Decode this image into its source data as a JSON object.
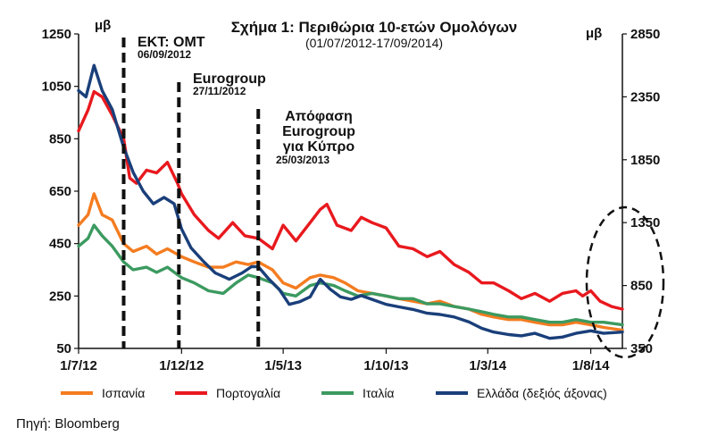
{
  "chart_data": {
    "type": "line",
    "title": "Σχήμα 1: Περιθώρια 10-ετών Ομολόγων",
    "subtitle": "(01/07/2012-17/09/2014)",
    "left_axis_unit": "μβ",
    "right_axis_unit": "μβ",
    "left_ylim": [
      50,
      1250
    ],
    "left_ticks": [
      "1250",
      "1050",
      "850",
      "650",
      "450",
      "250",
      "50"
    ],
    "right_ylim": [
      350,
      2850
    ],
    "right_ticks": [
      "2850",
      "2350",
      "1850",
      "1350",
      "850",
      "350"
    ],
    "x_ticks": [
      "1/7/12",
      "1/12/12",
      "1/5/13",
      "1/10/13",
      "1/3/14",
      "1/8/14"
    ],
    "x_tick_dates": [
      "2012-07-01",
      "2012-12-01",
      "2013-05-01",
      "2013-10-01",
      "2014-03-01",
      "2014-08-01"
    ],
    "x_range": [
      "2012-07-01",
      "2014-09-17"
    ],
    "grid": false,
    "legend_position": "bottom",
    "series": [
      {
        "name": "Ισπανία",
        "color": "#f47c20",
        "axis": "left",
        "points": [
          [
            "2012-07-01",
            520
          ],
          [
            "2012-07-15",
            560
          ],
          [
            "2012-07-24",
            640
          ],
          [
            "2012-08-05",
            560
          ],
          [
            "2012-08-20",
            540
          ],
          [
            "2012-09-06",
            450
          ],
          [
            "2012-09-20",
            420
          ],
          [
            "2012-10-10",
            440
          ],
          [
            "2012-10-25",
            410
          ],
          [
            "2012-11-10",
            430
          ],
          [
            "2012-12-01",
            400
          ],
          [
            "2012-12-20",
            380
          ],
          [
            "2013-01-10",
            360
          ],
          [
            "2013-02-01",
            360
          ],
          [
            "2013-02-20",
            380
          ],
          [
            "2013-03-10",
            370
          ],
          [
            "2013-03-25",
            380
          ],
          [
            "2013-04-15",
            350
          ],
          [
            "2013-05-01",
            300
          ],
          [
            "2013-05-20",
            280
          ],
          [
            "2013-06-10",
            320
          ],
          [
            "2013-06-25",
            330
          ],
          [
            "2013-07-15",
            320
          ],
          [
            "2013-08-01",
            300
          ],
          [
            "2013-08-20",
            270
          ],
          [
            "2013-09-10",
            260
          ],
          [
            "2013-10-01",
            250
          ],
          [
            "2013-10-20",
            240
          ],
          [
            "2013-11-10",
            230
          ],
          [
            "2013-12-01",
            220
          ],
          [
            "2013-12-20",
            230
          ],
          [
            "2014-01-10",
            210
          ],
          [
            "2014-02-01",
            200
          ],
          [
            "2014-02-20",
            180
          ],
          [
            "2014-03-10",
            170
          ],
          [
            "2014-04-01",
            160
          ],
          [
            "2014-04-20",
            160
          ],
          [
            "2014-05-10",
            150
          ],
          [
            "2014-06-01",
            140
          ],
          [
            "2014-06-20",
            140
          ],
          [
            "2014-07-10",
            150
          ],
          [
            "2014-08-01",
            140
          ],
          [
            "2014-08-20",
            130
          ],
          [
            "2014-09-17",
            120
          ]
        ]
      },
      {
        "name": "Πορτογαλία",
        "color": "#e8191e",
        "axis": "left",
        "points": [
          [
            "2012-07-01",
            880
          ],
          [
            "2012-07-15",
            960
          ],
          [
            "2012-07-24",
            1030
          ],
          [
            "2012-08-05",
            1010
          ],
          [
            "2012-08-20",
            940
          ],
          [
            "2012-09-06",
            850
          ],
          [
            "2012-09-15",
            700
          ],
          [
            "2012-09-25",
            680
          ],
          [
            "2012-10-10",
            730
          ],
          [
            "2012-10-25",
            720
          ],
          [
            "2012-11-10",
            760
          ],
          [
            "2012-11-25",
            680
          ],
          [
            "2012-12-01",
            640
          ],
          [
            "2012-12-20",
            560
          ],
          [
            "2013-01-10",
            500
          ],
          [
            "2013-01-25",
            470
          ],
          [
            "2013-02-15",
            530
          ],
          [
            "2013-03-05",
            480
          ],
          [
            "2013-03-25",
            470
          ],
          [
            "2013-04-15",
            430
          ],
          [
            "2013-05-01",
            520
          ],
          [
            "2013-05-20",
            460
          ],
          [
            "2013-06-10",
            530
          ],
          [
            "2013-06-25",
            580
          ],
          [
            "2013-07-05",
            600
          ],
          [
            "2013-07-20",
            520
          ],
          [
            "2013-08-10",
            500
          ],
          [
            "2013-08-25",
            550
          ],
          [
            "2013-09-10",
            530
          ],
          [
            "2013-10-01",
            510
          ],
          [
            "2013-10-20",
            440
          ],
          [
            "2013-11-10",
            430
          ],
          [
            "2013-12-01",
            400
          ],
          [
            "2013-12-20",
            420
          ],
          [
            "2014-01-10",
            370
          ],
          [
            "2014-02-01",
            340
          ],
          [
            "2014-02-20",
            300
          ],
          [
            "2014-03-10",
            300
          ],
          [
            "2014-04-01",
            270
          ],
          [
            "2014-04-20",
            240
          ],
          [
            "2014-05-10",
            260
          ],
          [
            "2014-06-01",
            230
          ],
          [
            "2014-06-20",
            260
          ],
          [
            "2014-07-10",
            270
          ],
          [
            "2014-07-20",
            250
          ],
          [
            "2014-08-01",
            270
          ],
          [
            "2014-08-15",
            230
          ],
          [
            "2014-09-01",
            210
          ],
          [
            "2014-09-17",
            200
          ]
        ]
      },
      {
        "name": "Ιταλία",
        "color": "#3c9a60",
        "axis": "left",
        "points": [
          [
            "2012-07-01",
            440
          ],
          [
            "2012-07-15",
            470
          ],
          [
            "2012-07-24",
            520
          ],
          [
            "2012-08-05",
            480
          ],
          [
            "2012-08-20",
            440
          ],
          [
            "2012-09-06",
            380
          ],
          [
            "2012-09-20",
            350
          ],
          [
            "2012-10-10",
            360
          ],
          [
            "2012-10-25",
            340
          ],
          [
            "2012-11-10",
            360
          ],
          [
            "2012-12-01",
            320
          ],
          [
            "2012-12-20",
            300
          ],
          [
            "2013-01-10",
            270
          ],
          [
            "2013-02-01",
            260
          ],
          [
            "2013-02-20",
            300
          ],
          [
            "2013-03-10",
            330
          ],
          [
            "2013-03-25",
            320
          ],
          [
            "2013-04-15",
            300
          ],
          [
            "2013-05-01",
            260
          ],
          [
            "2013-05-20",
            250
          ],
          [
            "2013-06-10",
            290
          ],
          [
            "2013-06-25",
            300
          ],
          [
            "2013-07-15",
            290
          ],
          [
            "2013-08-01",
            270
          ],
          [
            "2013-08-20",
            250
          ],
          [
            "2013-09-10",
            260
          ],
          [
            "2013-10-01",
            250
          ],
          [
            "2013-10-20",
            240
          ],
          [
            "2013-11-10",
            240
          ],
          [
            "2013-12-01",
            220
          ],
          [
            "2013-12-20",
            220
          ],
          [
            "2014-01-10",
            210
          ],
          [
            "2014-02-01",
            200
          ],
          [
            "2014-02-20",
            190
          ],
          [
            "2014-03-10",
            180
          ],
          [
            "2014-04-01",
            170
          ],
          [
            "2014-04-20",
            170
          ],
          [
            "2014-05-10",
            160
          ],
          [
            "2014-06-01",
            150
          ],
          [
            "2014-06-20",
            150
          ],
          [
            "2014-07-10",
            160
          ],
          [
            "2014-08-01",
            150
          ],
          [
            "2014-08-20",
            150
          ],
          [
            "2014-09-17",
            140
          ]
        ]
      },
      {
        "name": "Ελλάδα (δεξιός άξονας)",
        "color": "#1a3f7a",
        "axis": "right",
        "points": [
          [
            "2012-07-01",
            2400
          ],
          [
            "2012-07-12",
            2350
          ],
          [
            "2012-07-24",
            2600
          ],
          [
            "2012-08-05",
            2400
          ],
          [
            "2012-08-20",
            2250
          ],
          [
            "2012-09-06",
            1950
          ],
          [
            "2012-09-20",
            1750
          ],
          [
            "2012-10-05",
            1600
          ],
          [
            "2012-10-20",
            1500
          ],
          [
            "2012-11-05",
            1550
          ],
          [
            "2012-11-20",
            1500
          ],
          [
            "2012-12-01",
            1300
          ],
          [
            "2012-12-15",
            1150
          ],
          [
            "2013-01-01",
            1050
          ],
          [
            "2013-01-20",
            950
          ],
          [
            "2013-02-10",
            900
          ],
          [
            "2013-03-01",
            950
          ],
          [
            "2013-03-15",
            1000
          ],
          [
            "2013-03-25",
            1000
          ],
          [
            "2013-04-10",
            900
          ],
          [
            "2013-04-25",
            820
          ],
          [
            "2013-05-10",
            700
          ],
          [
            "2013-05-25",
            720
          ],
          [
            "2013-06-10",
            760
          ],
          [
            "2013-06-25",
            900
          ],
          [
            "2013-07-10",
            820
          ],
          [
            "2013-07-25",
            760
          ],
          [
            "2013-08-10",
            740
          ],
          [
            "2013-08-25",
            770
          ],
          [
            "2013-09-10",
            740
          ],
          [
            "2013-10-01",
            700
          ],
          [
            "2013-10-20",
            680
          ],
          [
            "2013-11-10",
            660
          ],
          [
            "2013-12-01",
            630
          ],
          [
            "2013-12-20",
            620
          ],
          [
            "2014-01-10",
            600
          ],
          [
            "2014-02-01",
            560
          ],
          [
            "2014-02-20",
            510
          ],
          [
            "2014-03-10",
            480
          ],
          [
            "2014-04-01",
            460
          ],
          [
            "2014-04-20",
            450
          ],
          [
            "2014-05-10",
            470
          ],
          [
            "2014-06-01",
            430
          ],
          [
            "2014-06-20",
            440
          ],
          [
            "2014-07-10",
            470
          ],
          [
            "2014-08-01",
            490
          ],
          [
            "2014-08-20",
            470
          ],
          [
            "2014-09-17",
            480
          ]
        ]
      }
    ],
    "events": [
      {
        "date": "2012-09-06",
        "label": "ΕΚΤ:  ΟΜΤ",
        "sublabel": "06/09/2012"
      },
      {
        "date": "2012-11-27",
        "label": "Eurogroup",
        "sublabel": "27/11/2012"
      },
      {
        "date": "2013-03-25",
        "label_lines": [
          "Απόφαση",
          "Eurogroup",
          "για Κύπρο"
        ],
        "sublabel": "25/03/2013"
      }
    ],
    "annotations": [
      "highlight-ellipse-right"
    ]
  },
  "source": "Πηγή: Bloomberg"
}
